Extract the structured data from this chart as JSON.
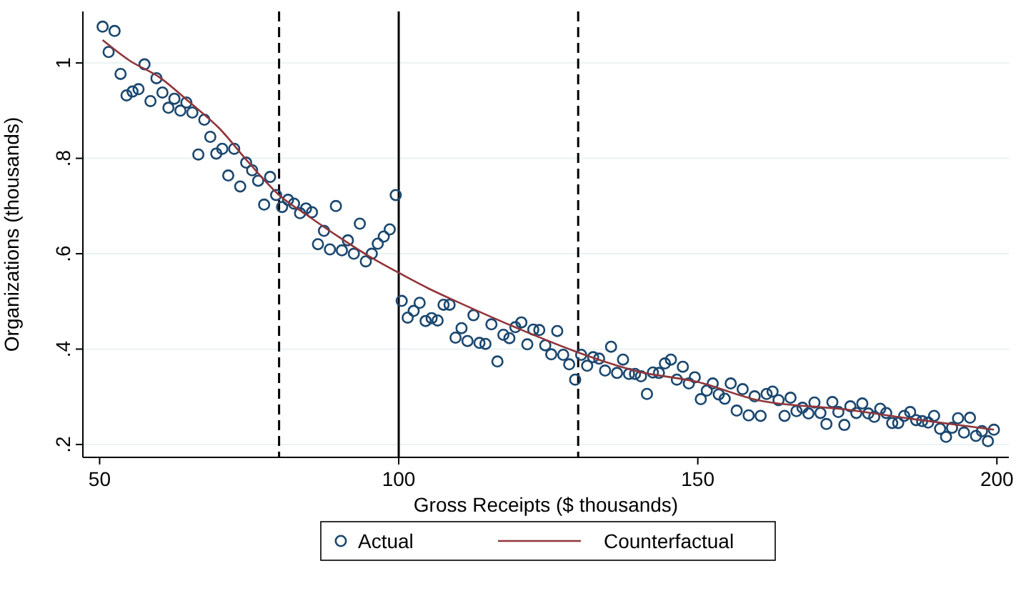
{
  "chart_data": {
    "type": "scatter",
    "xlabel": "Gross Receipts ($ thousands)",
    "ylabel": "Organizations (thousands)",
    "xlim": [
      47.2,
      202
    ],
    "ylim": [
      0.173,
      1.108
    ],
    "xticks": [
      50,
      100,
      150,
      200
    ],
    "yticks": [
      {
        "value": 0.2,
        "label": ".2"
      },
      {
        "value": 0.4,
        "label": ".4"
      },
      {
        "value": 0.6,
        "label": ".6"
      },
      {
        "value": 0.8,
        "label": ".8"
      },
      {
        "value": 1,
        "label": "1"
      }
    ],
    "grid": "y",
    "legend": "bottom",
    "ref_lines": [
      {
        "axis": "x",
        "value": 80,
        "line_style": "dashed",
        "color": "#000000"
      },
      {
        "axis": "x",
        "value": 100,
        "line_style": "solid",
        "color": "#000000"
      },
      {
        "axis": "x",
        "value": 130,
        "line_style": "dashed",
        "color": "#000000"
      }
    ],
    "series": [
      {
        "name": "Actual",
        "marker": "circle",
        "color": "#1a476f",
        "x": [
          50.5,
          51.5,
          52.5,
          53.5,
          54.5,
          55.5,
          56.5,
          57.5,
          58.5,
          59.5,
          60.5,
          61.5,
          62.5,
          63.5,
          64.5,
          65.5,
          66.5,
          67.5,
          68.5,
          69.5,
          70.5,
          71.5,
          72.5,
          73.5,
          74.5,
          75.5,
          76.5,
          77.5,
          78.5,
          79.5,
          80.5,
          81.5,
          82.5,
          83.5,
          84.5,
          85.5,
          86.5,
          87.5,
          88.5,
          89.5,
          90.5,
          91.5,
          92.5,
          93.5,
          94.5,
          95.5,
          96.5,
          97.5,
          98.5,
          99.5,
          100.5,
          101.5,
          102.5,
          103.5,
          104.5,
          105.5,
          106.5,
          107.5,
          108.5,
          109.5,
          110.5,
          111.5,
          112.5,
          113.5,
          114.5,
          115.5,
          116.5,
          117.5,
          118.5,
          119.5,
          120.5,
          121.5,
          122.5,
          123.5,
          124.5,
          125.5,
          126.5,
          127.5,
          128.5,
          129.5,
          130.5,
          131.5,
          132.5,
          133.5,
          134.5,
          135.5,
          136.5,
          137.5,
          138.5,
          139.5,
          140.5,
          141.5,
          142.5,
          143.5,
          144.5,
          145.5,
          146.5,
          147.5,
          148.5,
          149.5,
          150.5,
          151.5,
          152.5,
          153.5,
          154.5,
          155.5,
          156.5,
          157.5,
          158.5,
          159.5,
          160.5,
          161.5,
          162.5,
          163.5,
          164.5,
          165.5,
          166.5,
          167.5,
          168.5,
          169.5,
          170.5,
          171.5,
          172.5,
          173.5,
          174.5,
          175.5,
          176.5,
          177.5,
          178.5,
          179.5,
          180.5,
          181.5,
          182.5,
          183.5,
          184.5,
          185.5,
          186.5,
          187.5,
          188.5,
          189.5,
          190.5,
          191.5,
          192.5,
          193.5,
          194.5,
          195.5,
          196.5,
          197.5,
          198.5,
          199.5
        ],
        "values": [
          1.076,
          1.023,
          1.067,
          0.977,
          0.932,
          0.94,
          0.945,
          0.997,
          0.92,
          0.968,
          0.938,
          0.906,
          0.925,
          0.9,
          0.917,
          0.896,
          0.808,
          0.881,
          0.845,
          0.81,
          0.82,
          0.764,
          0.82,
          0.741,
          0.791,
          0.775,
          0.753,
          0.703,
          0.761,
          0.723,
          0.698,
          0.713,
          0.705,
          0.685,
          0.695,
          0.687,
          0.62,
          0.648,
          0.609,
          0.7,
          0.607,
          0.628,
          0.6,
          0.663,
          0.584,
          0.6,
          0.621,
          0.636,
          0.651,
          0.723,
          0.501,
          0.466,
          0.48,
          0.497,
          0.459,
          0.465,
          0.46,
          0.493,
          0.493,
          0.424,
          0.444,
          0.417,
          0.471,
          0.413,
          0.411,
          0.452,
          0.374,
          0.43,
          0.423,
          0.446,
          0.456,
          0.41,
          0.441,
          0.44,
          0.408,
          0.389,
          0.438,
          0.388,
          0.368,
          0.336,
          0.388,
          0.365,
          0.383,
          0.38,
          0.355,
          0.405,
          0.35,
          0.378,
          0.348,
          0.348,
          0.343,
          0.306,
          0.351,
          0.35,
          0.37,
          0.378,
          0.336,
          0.363,
          0.328,
          0.341,
          0.295,
          0.313,
          0.328,
          0.305,
          0.296,
          0.328,
          0.271,
          0.316,
          0.261,
          0.301,
          0.26,
          0.306,
          0.311,
          0.293,
          0.26,
          0.298,
          0.27,
          0.277,
          0.265,
          0.288,
          0.266,
          0.243,
          0.289,
          0.268,
          0.241,
          0.28,
          0.266,
          0.286,
          0.265,
          0.258,
          0.275,
          0.266,
          0.245,
          0.245,
          0.26,
          0.268,
          0.251,
          0.249,
          0.246,
          0.26,
          0.233,
          0.216,
          0.235,
          0.255,
          0.225,
          0.256,
          0.218,
          0.228,
          0.207,
          0.231
        ]
      },
      {
        "name": "Counterfactual",
        "type": "line",
        "marker": "none",
        "line_style": "solid",
        "color": "#90353b",
        "x": [
          50.5,
          55,
          60,
          65,
          70,
          75,
          80,
          85,
          90,
          95,
          100,
          105,
          110,
          120,
          130,
          140,
          150,
          160,
          175,
          185,
          199.5
        ],
        "values": [
          1.048,
          1.005,
          0.97,
          0.918,
          0.863,
          0.79,
          0.723,
          0.678,
          0.635,
          0.595,
          0.56,
          0.527,
          0.498,
          0.443,
          0.393,
          0.353,
          0.331,
          0.293,
          0.273,
          0.255,
          0.231
        ]
      }
    ]
  }
}
